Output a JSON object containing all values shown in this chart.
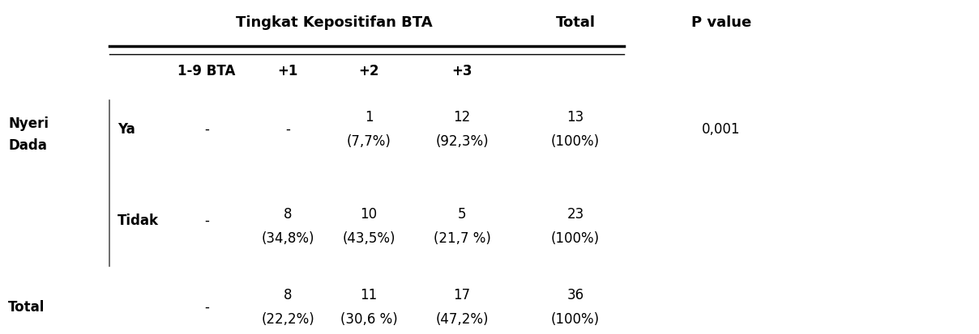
{
  "title": "Tingkat Kepositifan BTA",
  "col_headers": [
    "1-9 BTA",
    "+1",
    "+2",
    "+3"
  ],
  "col_total_header": "Total",
  "col_pvalue_header": "P value",
  "row_group_label_1": "Nyeri",
  "row_group_label_2": "Dada",
  "rows": [
    {
      "label": "Ya",
      "cells": [
        "-",
        "-",
        "1\n(7,7%)",
        "12\n(92,3%)"
      ],
      "total": "13\n(100%)",
      "pvalue": "0,001"
    },
    {
      "label": "Tidak",
      "cells": [
        "-",
        "8\n(34,8%)",
        "10\n(43,5%)",
        "5\n(21,7 %)"
      ],
      "total": "23\n(100%)",
      "pvalue": ""
    }
  ],
  "total_row": {
    "label": "Total",
    "cells": [
      "-",
      "8\n(22,2%)",
      "11\n(30,6 %)",
      "17\n(47,2%)"
    ],
    "total": "36\n(100%)",
    "pvalue": ""
  },
  "font_size": 12,
  "fig_width": 12.08,
  "fig_height": 4.14
}
